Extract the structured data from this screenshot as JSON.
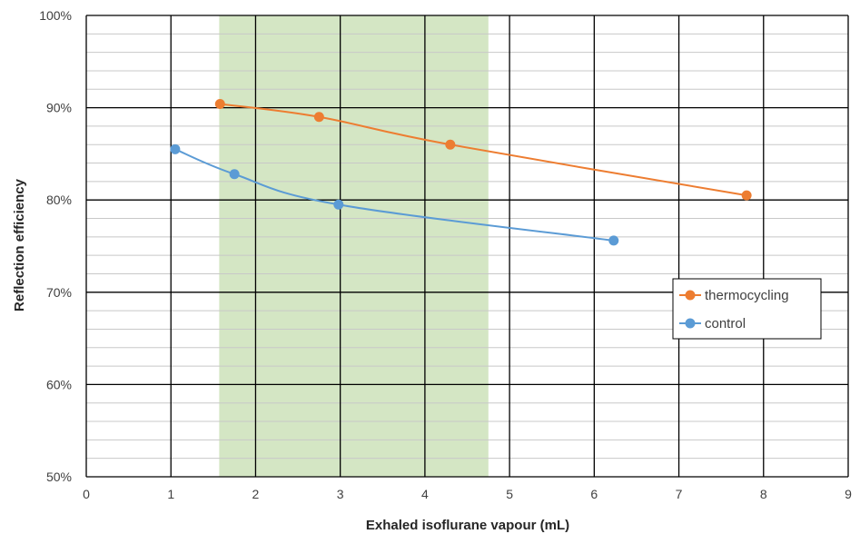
{
  "chart_data": {
    "type": "line",
    "title": "",
    "xlabel": "Exhaled isoflurane vapour (mL)",
    "ylabel": "Reflection efficiency",
    "xlim": [
      0,
      9
    ],
    "ylim": [
      0.5,
      1.0
    ],
    "x_ticks": [
      "0",
      "1",
      "2",
      "3",
      "4",
      "5",
      "6",
      "7",
      "8",
      "9"
    ],
    "y_ticks": [
      "50%",
      "60%",
      "70%",
      "80%",
      "90%",
      "100%"
    ],
    "grid": "major and minor",
    "shaded_region": {
      "x": [
        1.57,
        4.75
      ],
      "color": "#d4e6c4"
    },
    "legend": "right",
    "series": [
      {
        "name": "thermocycling",
        "color": "#ed7d31",
        "x": [
          1.58,
          2.75,
          4.3,
          7.8
        ],
        "y": [
          0.904,
          0.89,
          0.86,
          0.805
        ]
      },
      {
        "name": "control",
        "color": "#5b9bd5",
        "x": [
          1.05,
          1.75,
          2.98,
          6.23
        ],
        "y": [
          0.855,
          0.828,
          0.795,
          0.756
        ]
      }
    ]
  }
}
